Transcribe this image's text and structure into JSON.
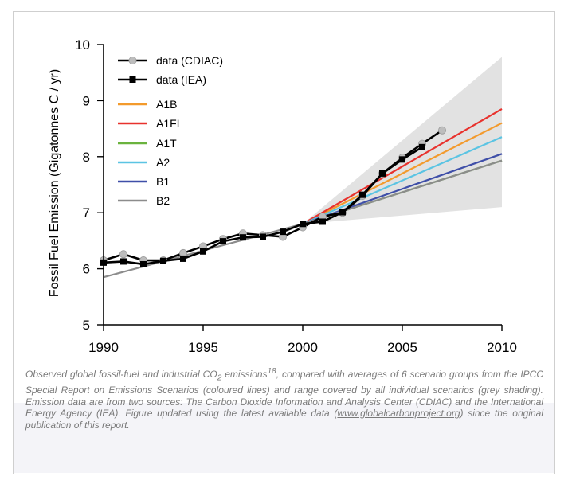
{
  "chart_data": {
    "type": "line",
    "title": "",
    "xlabel": "",
    "ylabel": "Fossil Fuel Emission (Gigatonnes C / yr)",
    "xlim": [
      1990,
      2010
    ],
    "ylim": [
      5,
      10
    ],
    "xticks": [
      "1990",
      "1995",
      "2000",
      "2005",
      "2010"
    ],
    "yticks": [
      "5",
      "6",
      "7",
      "8",
      "9",
      "10"
    ],
    "legend_position": "top-left",
    "grid": false,
    "data_series": [
      {
        "name": "data (CDIAC)",
        "color": "#000000",
        "marker": "circle",
        "marker_color": "#bdbdbd",
        "x": [
          1990,
          1991,
          1992,
          1993,
          1994,
          1995,
          1996,
          1997,
          1998,
          1999,
          2000,
          2001,
          2002,
          2003,
          2004,
          2005,
          2006,
          2007
        ],
        "y": [
          6.15,
          6.26,
          6.15,
          6.15,
          6.28,
          6.4,
          6.53,
          6.63,
          6.6,
          6.57,
          6.74,
          6.93,
          7.0,
          7.3,
          7.7,
          7.98,
          8.23,
          8.47
        ]
      },
      {
        "name": "data (IEA)",
        "color": "#000000",
        "marker": "square",
        "marker_color": "#000000",
        "x": [
          1990,
          1991,
          1992,
          1993,
          1994,
          1995,
          1996,
          1997,
          1998,
          1999,
          2000,
          2001,
          2002,
          2003,
          2004,
          2005,
          2006
        ],
        "y": [
          6.11,
          6.13,
          6.08,
          6.14,
          6.18,
          6.31,
          6.49,
          6.56,
          6.57,
          6.66,
          6.8,
          6.84,
          7.01,
          7.32,
          7.7,
          7.95,
          8.17
        ]
      }
    ],
    "scenarios": [
      {
        "name": "A1B",
        "color": "#f39a2c",
        "x": [
          2000,
          2010
        ],
        "y": [
          6.8,
          8.6
        ]
      },
      {
        "name": "A1FI",
        "color": "#e8322d",
        "x": [
          2000,
          2010
        ],
        "y": [
          6.8,
          8.85
        ]
      },
      {
        "name": "A1T",
        "color": "#6ab33e",
        "x": [
          2000,
          2010
        ],
        "y": [
          6.8,
          7.93
        ]
      },
      {
        "name": "A2",
        "color": "#5bc4e3",
        "x": [
          2000,
          2010
        ],
        "y": [
          6.8,
          8.35
        ]
      },
      {
        "name": "B1",
        "color": "#3f4fa8",
        "x": [
          2000,
          2010
        ],
        "y": [
          6.8,
          8.05
        ]
      },
      {
        "name": "B2",
        "color": "#8c8c8c",
        "x": [
          1990,
          2000,
          2010
        ],
        "y": [
          5.85,
          6.8,
          7.93
        ]
      }
    ],
    "range_shading": {
      "color": "#e2e2e2",
      "x": [
        2000,
        2010
      ],
      "upper": [
        6.8,
        9.78
      ],
      "lower": [
        6.8,
        7.1
      ]
    }
  },
  "caption": {
    "part1": "Observed global fossil-fuel and industrial CO",
    "sub": "2",
    "part2": " emissions",
    "sup": "18",
    "part3": ", compared with averages of 6 scenario groups from the IPCC Special Report on Emissions Scenarios (coloured lines) and range covered by all individual scenarios (grey shading). Emission data are from two sources: The Carbon Dioxide Information and Analysis Center (CDIAC) and the International Energy Agency (IEA). Figure updated using the latest available data (",
    "link": "www.globalcarbonproject.org",
    "part4": ") since the original publication of this report."
  }
}
